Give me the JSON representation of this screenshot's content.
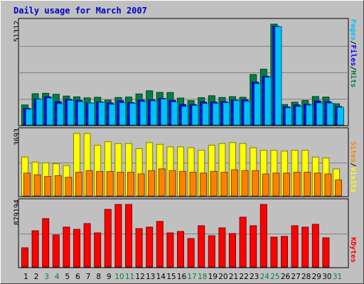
{
  "title": "Daily usage for March 2007",
  "colors": {
    "hits": "#008040",
    "files": "#0000ff",
    "pages": "#00c0ff",
    "visits": "#ffff00",
    "sites": "#ff8000",
    "kbytes": "#ff0000",
    "weekend_day": "#008040",
    "weekday_day": "#000000",
    "title": "#0000cc"
  },
  "panels": {
    "top": {
      "max_label": "51312",
      "legend": [
        {
          "text": "Pages",
          "color": "#00c0ff"
        },
        {
          "text": "/",
          "color": "#000000"
        },
        {
          "text": "Files",
          "color": "#0000ff"
        },
        {
          "text": "/",
          "color": "#000000"
        },
        {
          "text": "Hits",
          "color": "#008040"
        }
      ]
    },
    "middle": {
      "max_label": "3693",
      "legend": [
        {
          "text": "Sites",
          "color": "#ff8000"
        },
        {
          "text": "/",
          "color": "#000000"
        },
        {
          "text": "Visits",
          "color": "#ffff00"
        }
      ]
    },
    "bottom": {
      "max_label": "879194",
      "legend": [
        {
          "text": "KBytes",
          "color": "#ff0000"
        }
      ]
    }
  },
  "chart_data": {
    "type": "bar",
    "title": "Daily usage for March 2007",
    "categories": [
      "1",
      "2",
      "3",
      "4",
      "5",
      "6",
      "7",
      "8",
      "9",
      "10",
      "11",
      "12",
      "13",
      "14",
      "15",
      "16",
      "17",
      "18",
      "19",
      "20",
      "21",
      "22",
      "23",
      "24",
      "25",
      "26",
      "27",
      "28",
      "29",
      "30",
      "31"
    ],
    "weekend_days": [
      "3",
      "4",
      "10",
      "11",
      "17",
      "18",
      "24",
      "25",
      "31"
    ],
    "panels": [
      {
        "name": "top",
        "ylim": [
          0,
          51312
        ],
        "series": [
          {
            "name": "Hits",
            "values": [
              10200,
              15900,
              16100,
              15600,
              14700,
              14300,
              13800,
              14100,
              12600,
              14000,
              14200,
              15800,
              17400,
              16600,
              16500,
              13700,
              12400,
              13900,
              14900,
              14000,
              14400,
              14100,
              25700,
              28400,
              51312,
              10400,
              11600,
              12500,
              14500,
              14200,
              10800
            ]
          },
          {
            "name": "Files",
            "values": [
              8500,
              13300,
              14300,
              11900,
              13000,
              12500,
              11200,
              11800,
              11200,
              12300,
              11400,
              12700,
              12800,
              13500,
              12500,
              10400,
              10400,
              11700,
              11700,
              11900,
              12700,
              12800,
              21800,
              24800,
              50200,
              9200,
              10200,
              10500,
              12200,
              11800,
              9400
            ]
          },
          {
            "name": "Pages",
            "values": [
              8000,
              13100,
              13700,
              10800,
              12500,
              11800,
              11100,
              11500,
              10500,
              11300,
              11000,
              11900,
              12200,
              13100,
              11700,
              9400,
              9900,
              10900,
              11000,
              11300,
              12400,
              12000,
              21000,
              24200,
              50000,
              8700,
              9400,
              10100,
              11200,
              11100,
              9000
            ]
          }
        ]
      },
      {
        "name": "middle",
        "ylim": [
          0,
          3693
        ],
        "series": [
          {
            "name": "Visits",
            "values": [
              2300,
              2000,
              1950,
              1900,
              1800,
              3693,
              3693,
              3000,
              3200,
              3100,
              3100,
              2800,
              3150,
              3050,
              2900,
              2900,
              2850,
              2700,
              3000,
              3100,
              3150,
              3100,
              2850,
              2700,
              2700,
              2650,
              2700,
              2700,
              2300,
              2250,
              1600
            ]
          },
          {
            "name": "Sites",
            "values": [
              1350,
              1250,
              1150,
              1200,
              1100,
              1400,
              1500,
              1450,
              1450,
              1400,
              1400,
              1300,
              1500,
              1600,
              1500,
              1450,
              1400,
              1350,
              1450,
              1400,
              1550,
              1500,
              1500,
              1300,
              1350,
              1350,
              1400,
              1400,
              1350,
              1300,
              950
            ]
          }
        ]
      },
      {
        "name": "bottom",
        "ylim": [
          0,
          879194
        ],
        "series": [
          {
            "name": "KBytes",
            "values": [
              270000,
              510000,
              680000,
              450000,
              560000,
              530000,
              610000,
              480000,
              810000,
              879194,
              879194,
              540000,
              560000,
              640000,
              480000,
              500000,
              400000,
              580000,
              440000,
              550000,
              470000,
              700000,
              580000,
              879194,
              420000,
              430000,
              580000,
              560000,
              600000,
              410000,
              0
            ]
          }
        ]
      }
    ]
  }
}
